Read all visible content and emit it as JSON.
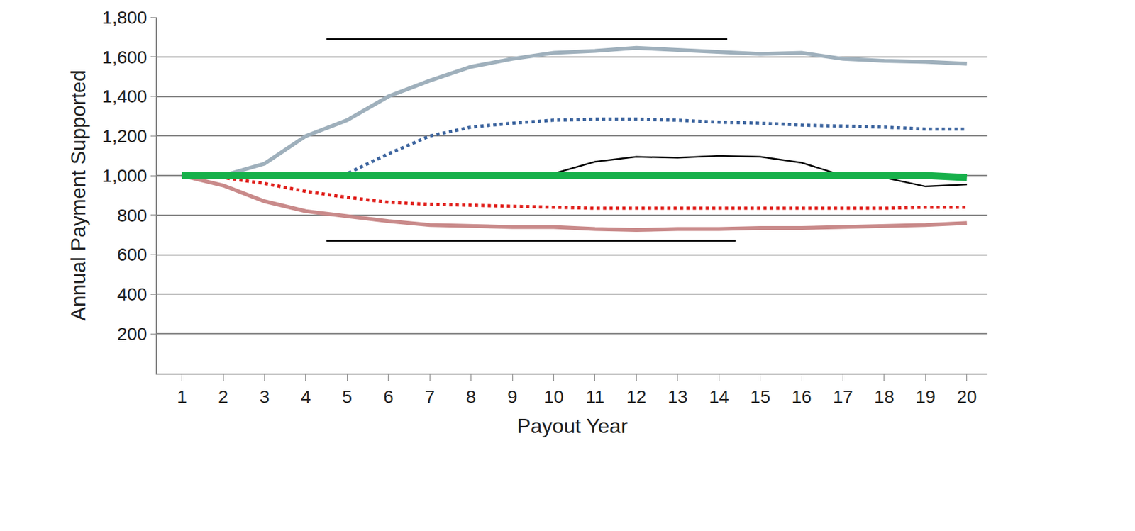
{
  "chart_data": {
    "type": "line",
    "x_label": "Payout Year",
    "y_label": "Annual Payment Supported",
    "x": [
      1,
      2,
      3,
      4,
      5,
      6,
      7,
      8,
      9,
      10,
      11,
      12,
      13,
      14,
      15,
      16,
      17,
      18,
      19,
      20
    ],
    "xlim": [
      0.4,
      20.5
    ],
    "xticks": [
      1,
      2,
      3,
      4,
      5,
      6,
      7,
      8,
      9,
      10,
      11,
      12,
      13,
      14,
      15,
      16,
      17,
      18,
      19,
      20
    ],
    "ylim": [
      0,
      1800
    ],
    "yticks": [
      200,
      400,
      600,
      800,
      {
        "value": 1000,
        "label": "1,000"
      },
      {
        "value": 1200,
        "label": "1,200"
      },
      {
        "value": 1400,
        "label": "1,400"
      },
      {
        "value": 1600,
        "label": "1,600"
      },
      {
        "value": 1800,
        "label": "1,800"
      }
    ],
    "grid": true,
    "series": [
      {
        "color": "#c98a8a",
        "line_style": "solid",
        "values": [
          1000,
          950,
          870,
          820,
          795,
          770,
          750,
          745,
          740,
          740,
          730,
          725,
          730,
          730,
          735,
          735,
          740,
          745,
          750,
          760
        ]
      },
      {
        "color": "#e0201c",
        "line_style": "dotted",
        "values": [
          1000,
          990,
          960,
          920,
          890,
          865,
          855,
          850,
          845,
          840,
          835,
          835,
          835,
          835,
          835,
          835,
          835,
          835,
          840,
          840
        ]
      },
      {
        "color": "#9fb0bc",
        "line_style": "solid",
        "values": [
          1000,
          1000,
          1060,
          1200,
          1280,
          1400,
          1480,
          1550,
          1590,
          1620,
          1630,
          1645,
          1635,
          1625,
          1615,
          1620,
          1590,
          1580,
          1575,
          1565
        ]
      },
      {
        "color": "#3d659f",
        "line_style": "dotted",
        "values": [
          1000,
          1000,
          1000,
          1000,
          1010,
          1110,
          1200,
          1245,
          1265,
          1280,
          1285,
          1285,
          1280,
          1270,
          1265,
          1255,
          1250,
          1245,
          1235,
          1235
        ]
      },
      {
        "color": "#000000",
        "line_style": "solid",
        "values": [
          1000,
          1000,
          1000,
          1000,
          1000,
          1000,
          1000,
          1000,
          1000,
          1010,
          1070,
          1095,
          1090,
          1100,
          1095,
          1065,
          1000,
          990,
          945,
          955
        ]
      },
      {
        "color": "#16b04a",
        "line_style": "solid",
        "values": [
          1000,
          1000,
          1000,
          1000,
          1000,
          1000,
          1000,
          1000,
          1000,
          1000,
          1000,
          1000,
          1000,
          1000,
          1000,
          1000,
          1000,
          1000,
          1000,
          990
        ]
      },
      {
        "color": "#000000",
        "line_style": "solid",
        "x": [
          4.5,
          14.2
        ],
        "values": [
          1690,
          1690
        ]
      },
      {
        "color": "#000000",
        "line_style": "solid",
        "x": [
          4.5,
          14.4
        ],
        "values": [
          670,
          670
        ]
      }
    ]
  }
}
